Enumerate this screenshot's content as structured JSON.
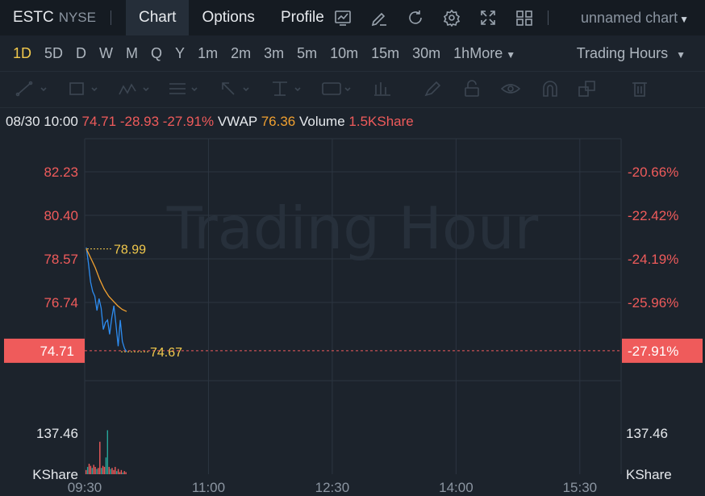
{
  "header": {
    "symbol": "ESTC",
    "exchange": "NYSE",
    "tabs": [
      {
        "label": "Chart",
        "active": true
      },
      {
        "label": "Options",
        "active": false
      },
      {
        "label": "Profile",
        "active": false
      }
    ],
    "icons": [
      "indicator-icon",
      "draw-icon",
      "refresh-icon",
      "settings-icon",
      "fullscreen-icon",
      "layout-icon"
    ],
    "chart_name": "unnamed chart"
  },
  "timeframes": {
    "items": [
      "1D",
      "5D",
      "D",
      "W",
      "M",
      "Q",
      "Y",
      "1m",
      "2m",
      "3m",
      "5m",
      "10m",
      "15m",
      "30m",
      "1h"
    ],
    "active": "1D",
    "more_label": "More",
    "session_label": "Trading Hours"
  },
  "draw_tools": [
    "line-tool-icon",
    "rectangle-tool-icon",
    "pattern-tool-icon",
    "text-tool-icon",
    "arrow-tool-icon",
    "measure-tool-icon",
    "label-tool-icon",
    "bar-pattern-icon",
    "brush-icon",
    "lock-icon",
    "eye-icon",
    "magnet-icon",
    "clone-icon",
    "trash-icon"
  ],
  "info": {
    "datetime": "08/30 10:00",
    "price": "74.71",
    "change": "-28.93",
    "change_pct": "-27.91%",
    "vwap_label": "VWAP",
    "vwap_value": "76.36",
    "volume_label": "Volume",
    "volume_value": "1.5KShare"
  },
  "colors": {
    "price_line": "#2d8cf0",
    "vwap_line": "#f0a030",
    "down": "#ef5b5b",
    "up": "#26a69a",
    "accent": "#f2c94c"
  },
  "chart_data": {
    "type": "line",
    "watermark": "Trading Hour",
    "y_ticks": [
      "82.23",
      "80.40",
      "78.57",
      "76.74"
    ],
    "y_tick_values": [
      82.23,
      80.4,
      78.57,
      76.74
    ],
    "pct_ticks": [
      "-20.66%",
      "-22.42%",
      "-24.19%",
      "-25.96%"
    ],
    "current_price": "74.71",
    "current_price_value": 74.71,
    "current_pct": "-27.91%",
    "high_label": "78.99",
    "high_value": 78.99,
    "low_label": "74.67",
    "low_value": 74.67,
    "volume_tick": "137.46",
    "volume_tick_value": 137.46,
    "volume_unit": "KShare",
    "x_ticks": [
      "09:30",
      "11:00",
      "12:30",
      "14:00",
      "15:30"
    ],
    "x_tick_minutes": [
      0,
      90,
      180,
      270,
      360
    ],
    "x_max_minutes": 390,
    "price_series": [
      79.05,
      78.4,
      77.6,
      77.2,
      77.0,
      76.4,
      76.9,
      76.5,
      75.6,
      75.9,
      76.0,
      75.4,
      76.1,
      76.6,
      75.8,
      74.9,
      76.0,
      75.1,
      74.8,
      74.67
    ],
    "vwap_series": [
      79.0,
      78.6,
      78.2,
      77.7,
      77.3,
      77.0,
      76.8,
      76.6,
      76.45,
      76.36
    ],
    "volume_bars": [
      {
        "v": 20,
        "up": false
      },
      {
        "v": 35,
        "up": true
      },
      {
        "v": 50,
        "up": false
      },
      {
        "v": 40,
        "up": false
      },
      {
        "v": 30,
        "up": true
      },
      {
        "v": 45,
        "up": false
      },
      {
        "v": 35,
        "up": false
      },
      {
        "v": 25,
        "up": true
      },
      {
        "v": 30,
        "up": false
      },
      {
        "v": 155,
        "up": false
      },
      {
        "v": 30,
        "up": true
      },
      {
        "v": 40,
        "up": false
      },
      {
        "v": 35,
        "up": false
      },
      {
        "v": 80,
        "up": true
      },
      {
        "v": 210,
        "up": true
      },
      {
        "v": 35,
        "up": false
      },
      {
        "v": 25,
        "up": true
      },
      {
        "v": 30,
        "up": false
      },
      {
        "v": 20,
        "up": false
      },
      {
        "v": 35,
        "up": false
      },
      {
        "v": 15,
        "up": true
      },
      {
        "v": 25,
        "up": false
      },
      {
        "v": 10,
        "up": false
      },
      {
        "v": 20,
        "up": false
      },
      {
        "v": 8,
        "up": true
      },
      {
        "v": 15,
        "up": false
      },
      {
        "v": 10,
        "up": false
      }
    ]
  }
}
